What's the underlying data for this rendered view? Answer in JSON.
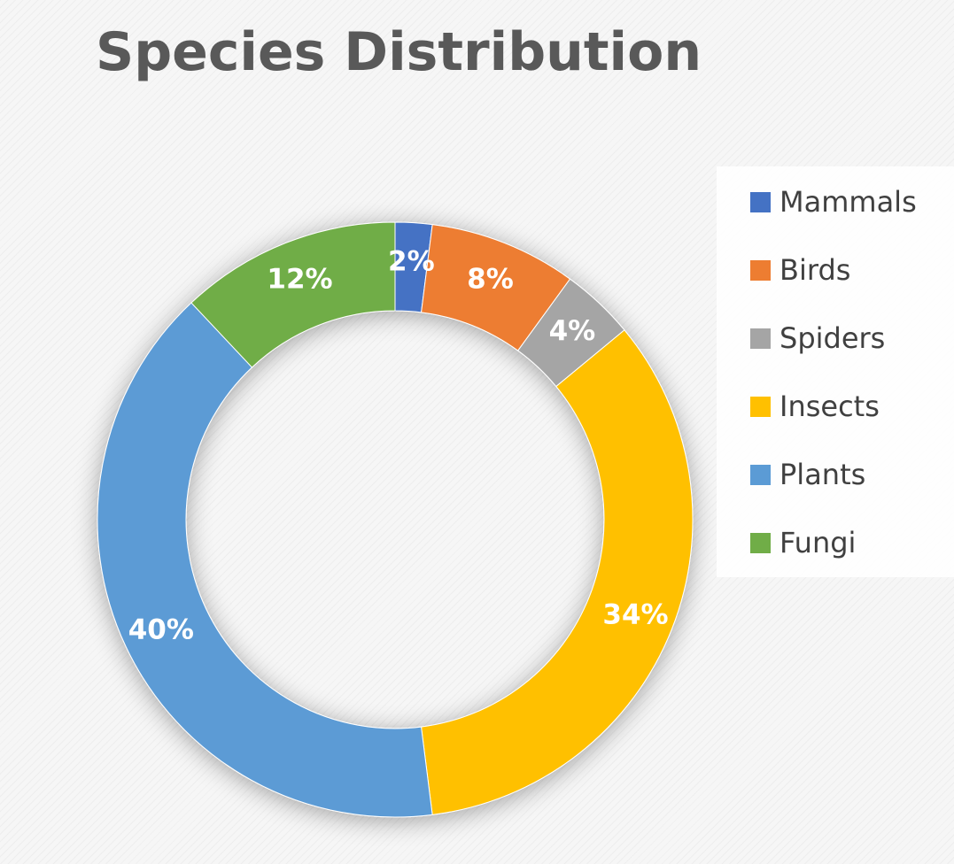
{
  "chart_data": {
    "type": "pie",
    "title": "Species Distribution",
    "donut": true,
    "legend_position": "right",
    "categories": [
      "Mammals",
      "Birds",
      "Spiders",
      "Insects",
      "Plants",
      "Fungi"
    ],
    "values": [
      2,
      8,
      4,
      34,
      40,
      12
    ],
    "data_labels": [
      "2%",
      "8%",
      "4%",
      "34%",
      "40%",
      "12%"
    ],
    "colors": [
      "#4472c4",
      "#ed7d31",
      "#a5a5a5",
      "#ffc000",
      "#5b9bd5",
      "#70ad47"
    ]
  }
}
